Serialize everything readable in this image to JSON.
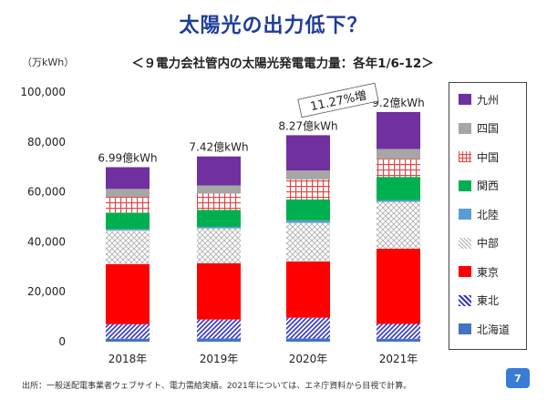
{
  "header": {
    "title": "太陽光の出力低下？",
    "subtitle": "＜９電力会社管内の太陽光発電電力量：各年1/6-12＞"
  },
  "chart_data": {
    "type": "bar",
    "stacked": true,
    "categories": [
      "2018年",
      "2019年",
      "2020年",
      "2021年"
    ],
    "ylabel": "（万kWh）",
    "ylim": [
      0,
      100000
    ],
    "yticks": [
      0,
      20000,
      40000,
      60000,
      80000,
      100000
    ],
    "ytick_labels": [
      "0",
      "20,000",
      "40,000",
      "60,000",
      "80,000",
      "100,000"
    ],
    "series": [
      {
        "name": "北海道",
        "color": "#4472c4",
        "pattern": "solid",
        "values": [
          1200,
          1300,
          1300,
          1200
        ]
      },
      {
        "name": "東北",
        "color": "#3333cc",
        "pattern": "hatch",
        "values": [
          5800,
          7600,
          8300,
          5900
        ]
      },
      {
        "name": "東京",
        "color": "#ff0000",
        "pattern": "solid",
        "values": [
          24100,
          22500,
          22500,
          30200
        ]
      },
      {
        "name": "中部",
        "color": "#999999",
        "pattern": "dots",
        "values": [
          13500,
          14000,
          15500,
          18700
        ]
      },
      {
        "name": "北陸",
        "color": "#5b9bd5",
        "pattern": "solid",
        "values": [
          500,
          600,
          1000,
          700
        ]
      },
      {
        "name": "関西",
        "color": "#00b050",
        "pattern": "solid",
        "values": [
          6600,
          6800,
          8400,
          9300
        ]
      },
      {
        "name": "中国",
        "color": "#e84040",
        "pattern": "grid",
        "values": [
          6300,
          6500,
          8000,
          7200
        ]
      },
      {
        "name": "四国",
        "color": "#a6a6a6",
        "pattern": "solid",
        "values": [
          3200,
          3300,
          3600,
          4000
        ]
      },
      {
        "name": "九州",
        "color": "#7030a0",
        "pattern": "solid",
        "values": [
          8700,
          11600,
          14100,
          14800
        ]
      }
    ],
    "data_labels": [
      "6.99億kWh",
      "7.42億kWh",
      "8.27億kWh",
      "9.2億kWh"
    ],
    "annotation": "11.27%増",
    "legend_position": "right",
    "grid": false
  },
  "footer": {
    "source": "出所：一般送配電事業者ウェブサイト、電力需給実績。2021年については、エネ庁資料から目視で計算。",
    "page_number": "7"
  }
}
